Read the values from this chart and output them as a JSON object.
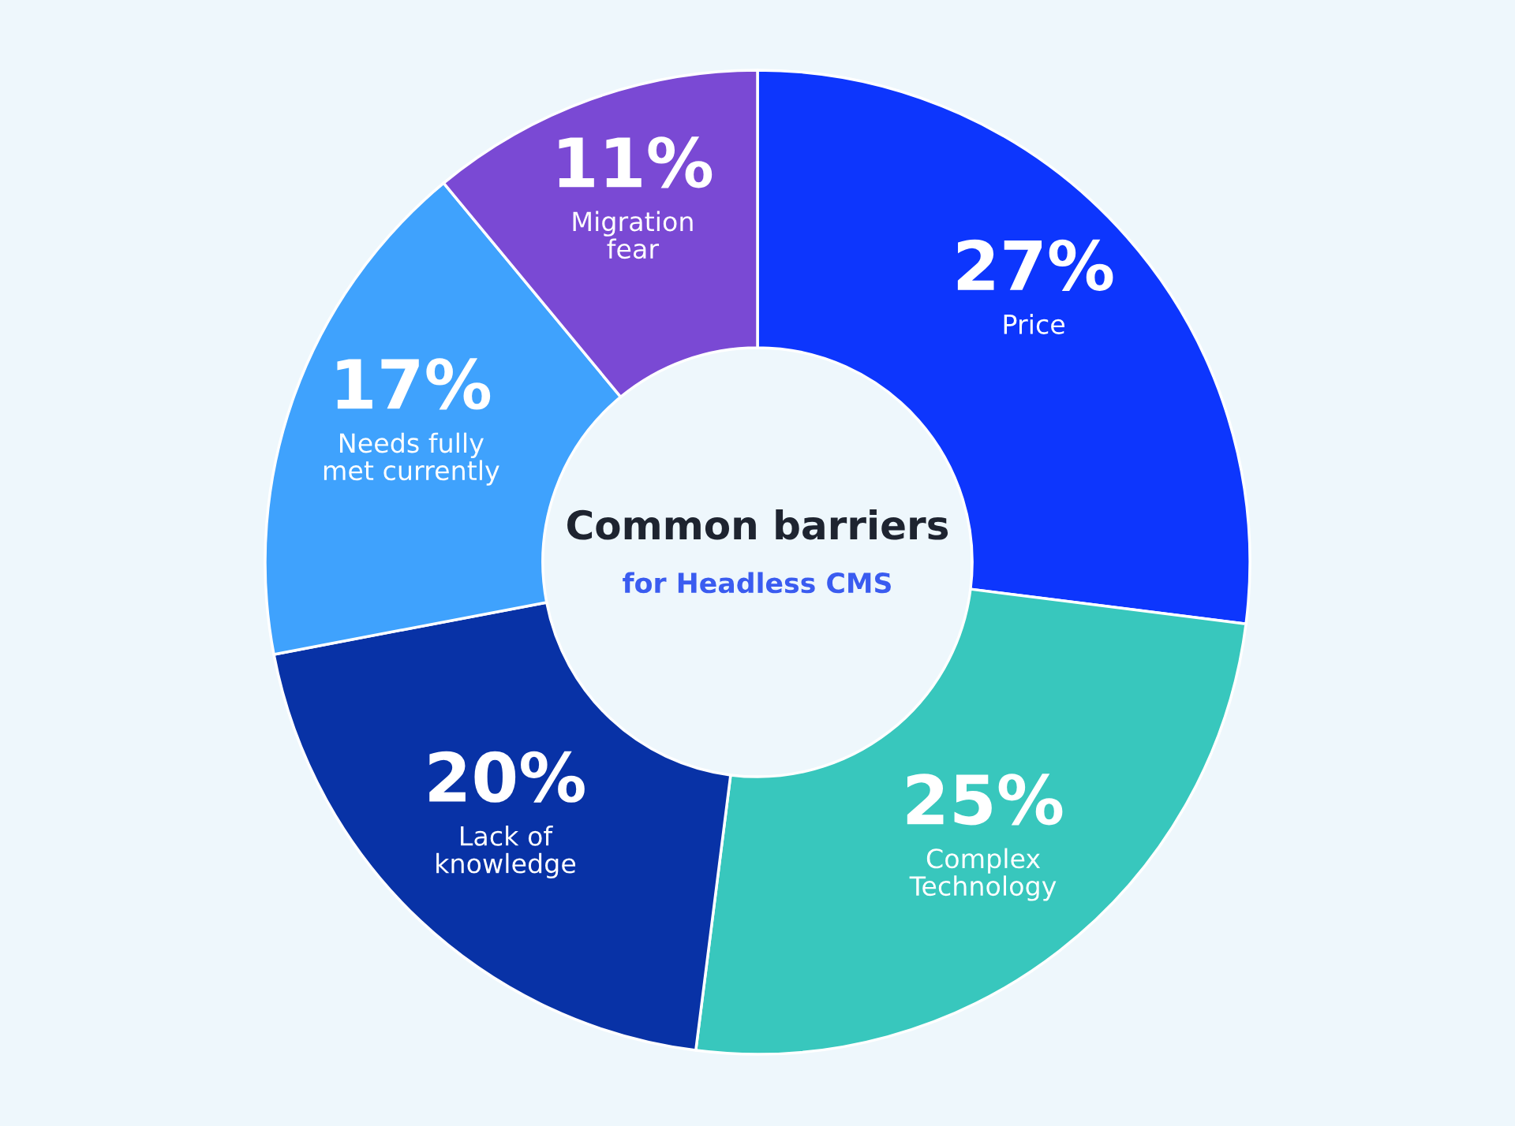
{
  "chart_data": {
    "type": "donut",
    "title": "Common barriers",
    "subtitle": "for Headless CMS",
    "categories": [
      "Price",
      "Complex\nTechnology",
      "Lack of\nknowledge",
      "Needs fully\nmet currently",
      "Migration\nfear"
    ],
    "values": [
      27,
      25,
      20,
      17,
      11
    ],
    "value_labels": [
      "27%",
      "25%",
      "20%",
      "17%",
      "11%"
    ],
    "colors": [
      "#0d36fd",
      "#38c7bd",
      "#0832a6",
      "#3fa2fd",
      "#7a49d4"
    ],
    "legend": false
  }
}
